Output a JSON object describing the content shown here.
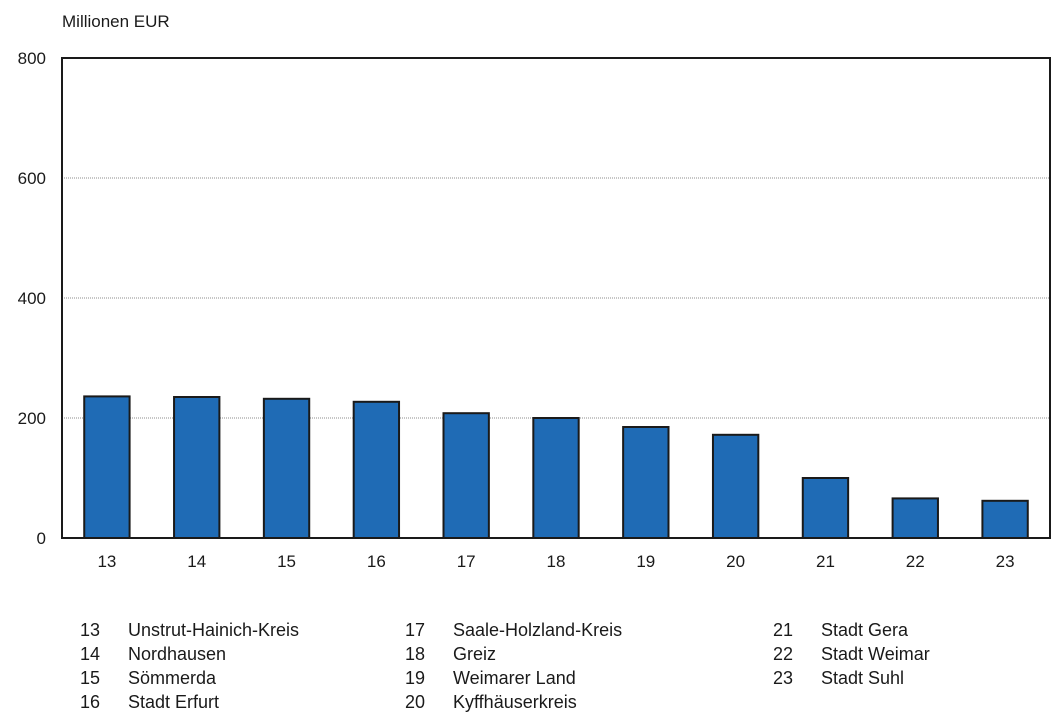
{
  "chart_data": {
    "type": "bar",
    "ylabel": "Millionen EUR",
    "ylim": [
      0,
      800
    ],
    "yticks": [
      0,
      200,
      400,
      600,
      800
    ],
    "grid": true,
    "categories": [
      "13",
      "14",
      "15",
      "16",
      "17",
      "18",
      "19",
      "20",
      "21",
      "22",
      "23"
    ],
    "values": [
      236,
      235,
      232,
      227,
      208,
      200,
      185,
      172,
      100,
      66,
      62
    ],
    "bar_color": "#1f6bb5",
    "legend": [
      {
        "num": "13",
        "label": "Unstrut-Hainich-Kreis"
      },
      {
        "num": "14",
        "label": "Nordhausen"
      },
      {
        "num": "15",
        "label": "Sömmerda"
      },
      {
        "num": "16",
        "label": "Stadt Erfurt"
      },
      {
        "num": "17",
        "label": "Saale-Holzland-Kreis"
      },
      {
        "num": "18",
        "label": "Greiz"
      },
      {
        "num": "19",
        "label": "Weimarer Land"
      },
      {
        "num": "20",
        "label": "Kyffhäuserkreis"
      },
      {
        "num": "21",
        "label": "Stadt Gera"
      },
      {
        "num": "22",
        "label": "Stadt Weimar"
      },
      {
        "num": "23",
        "label": "Stadt Suhl"
      }
    ]
  }
}
